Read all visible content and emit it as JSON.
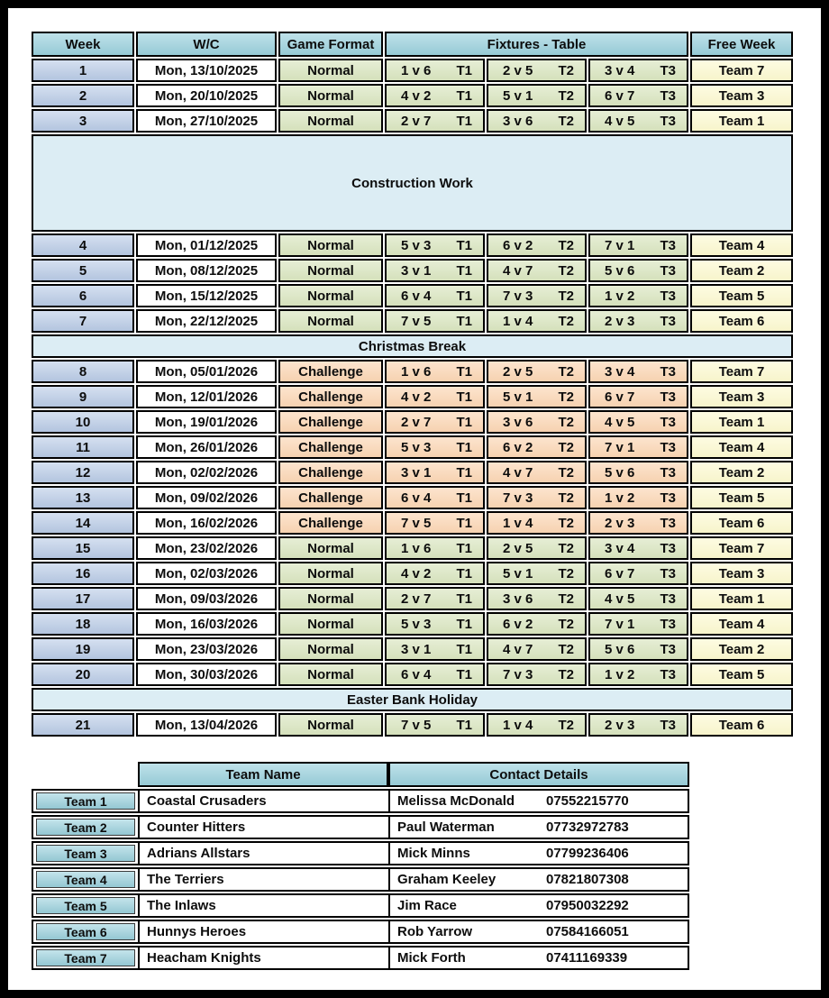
{
  "colors": {
    "header": "#9CD2DE",
    "week": "#B9CBE6",
    "normal": "#D9E5BF",
    "challenge": "#FBD6B4",
    "free": "#FCF9CF",
    "band": "#DCEDF4",
    "border": "#000000"
  },
  "fixtures": {
    "headers": {
      "week": "Week",
      "wc": "W/C",
      "format": "Game Format",
      "fixtures": "Fixtures - Table",
      "free": "Free Week"
    },
    "rows": [
      {
        "type": "week",
        "week": "1",
        "wc": "Mon, 13/10/2025",
        "format": "Normal",
        "fixtures": [
          {
            "match": "1 v 6",
            "table": "T1"
          },
          {
            "match": "2 v 5",
            "table": "T2"
          },
          {
            "match": "3 v 4",
            "table": "T3"
          }
        ],
        "free": "Team 7"
      },
      {
        "type": "week",
        "week": "2",
        "wc": "Mon, 20/10/2025",
        "format": "Normal",
        "fixtures": [
          {
            "match": "4 v 2",
            "table": "T1"
          },
          {
            "match": "5 v 1",
            "table": "T2"
          },
          {
            "match": "6 v 7",
            "table": "T3"
          }
        ],
        "free": "Team 3"
      },
      {
        "type": "week",
        "week": "3",
        "wc": "Mon, 27/10/2025",
        "format": "Normal",
        "fixtures": [
          {
            "match": "2 v 7",
            "table": "T1"
          },
          {
            "match": "3 v 6",
            "table": "T2"
          },
          {
            "match": "4 v 5",
            "table": "T3"
          }
        ],
        "free": "Team 1"
      },
      {
        "type": "band",
        "label": "Construction Work",
        "variant": "tall"
      },
      {
        "type": "week",
        "week": "4",
        "wc": "Mon, 01/12/2025",
        "format": "Normal",
        "fixtures": [
          {
            "match": "5 v 3",
            "table": "T1"
          },
          {
            "match": "6 v 2",
            "table": "T2"
          },
          {
            "match": "7 v 1",
            "table": "T3"
          }
        ],
        "free": "Team 4"
      },
      {
        "type": "week",
        "week": "5",
        "wc": "Mon, 08/12/2025",
        "format": "Normal",
        "fixtures": [
          {
            "match": "3 v 1",
            "table": "T1"
          },
          {
            "match": "4 v 7",
            "table": "T2"
          },
          {
            "match": "5 v 6",
            "table": "T3"
          }
        ],
        "free": "Team 2"
      },
      {
        "type": "week",
        "week": "6",
        "wc": "Mon, 15/12/2025",
        "format": "Normal",
        "fixtures": [
          {
            "match": "6 v 4",
            "table": "T1"
          },
          {
            "match": "7 v 3",
            "table": "T2"
          },
          {
            "match": "1 v 2",
            "table": "T3"
          }
        ],
        "free": "Team 5"
      },
      {
        "type": "week",
        "week": "7",
        "wc": "Mon, 22/12/2025",
        "format": "Normal",
        "fixtures": [
          {
            "match": "7 v 5",
            "table": "T1"
          },
          {
            "match": "1 v 4",
            "table": "T2"
          },
          {
            "match": "2 v 3",
            "table": "T3"
          }
        ],
        "free": "Team 6"
      },
      {
        "type": "band",
        "label": "Christmas Break",
        "variant": "slim"
      },
      {
        "type": "week",
        "week": "8",
        "wc": "Mon, 05/01/2026",
        "format": "Challenge",
        "fixtures": [
          {
            "match": "1 v 6",
            "table": "T1"
          },
          {
            "match": "2 v 5",
            "table": "T2"
          },
          {
            "match": "3 v 4",
            "table": "T3"
          }
        ],
        "free": "Team 7"
      },
      {
        "type": "week",
        "week": "9",
        "wc": "Mon, 12/01/2026",
        "format": "Challenge",
        "fixtures": [
          {
            "match": "4 v 2",
            "table": "T1"
          },
          {
            "match": "5 v 1",
            "table": "T2"
          },
          {
            "match": "6 v 7",
            "table": "T3"
          }
        ],
        "free": "Team 3"
      },
      {
        "type": "week",
        "week": "10",
        "wc": "Mon, 19/01/2026",
        "format": "Challenge",
        "fixtures": [
          {
            "match": "2 v 7",
            "table": "T1"
          },
          {
            "match": "3 v 6",
            "table": "T2"
          },
          {
            "match": "4 v 5",
            "table": "T3"
          }
        ],
        "free": "Team 1"
      },
      {
        "type": "week",
        "week": "11",
        "wc": "Mon, 26/01/2026",
        "format": "Challenge",
        "fixtures": [
          {
            "match": "5 v 3",
            "table": "T1"
          },
          {
            "match": "6 v 2",
            "table": "T2"
          },
          {
            "match": "7 v 1",
            "table": "T3"
          }
        ],
        "free": "Team 4"
      },
      {
        "type": "week",
        "week": "12",
        "wc": "Mon, 02/02/2026",
        "format": "Challenge",
        "fixtures": [
          {
            "match": "3 v 1",
            "table": "T1"
          },
          {
            "match": "4 v 7",
            "table": "T2"
          },
          {
            "match": "5 v 6",
            "table": "T3"
          }
        ],
        "free": "Team 2"
      },
      {
        "type": "week",
        "week": "13",
        "wc": "Mon, 09/02/2026",
        "format": "Challenge",
        "fixtures": [
          {
            "match": "6 v 4",
            "table": "T1"
          },
          {
            "match": "7 v 3",
            "table": "T2"
          },
          {
            "match": "1 v 2",
            "table": "T3"
          }
        ],
        "free": "Team 5"
      },
      {
        "type": "week",
        "week": "14",
        "wc": "Mon, 16/02/2026",
        "format": "Challenge",
        "fixtures": [
          {
            "match": "7 v 5",
            "table": "T1"
          },
          {
            "match": "1 v 4",
            "table": "T2"
          },
          {
            "match": "2 v 3",
            "table": "T3"
          }
        ],
        "free": "Team 6"
      },
      {
        "type": "week",
        "week": "15",
        "wc": "Mon, 23/02/2026",
        "format": "Normal",
        "fixtures": [
          {
            "match": "1 v 6",
            "table": "T1"
          },
          {
            "match": "2 v 5",
            "table": "T2"
          },
          {
            "match": "3 v 4",
            "table": "T3"
          }
        ],
        "free": "Team 7"
      },
      {
        "type": "week",
        "week": "16",
        "wc": "Mon, 02/03/2026",
        "format": "Normal",
        "fixtures": [
          {
            "match": "4 v 2",
            "table": "T1"
          },
          {
            "match": "5 v 1",
            "table": "T2"
          },
          {
            "match": "6 v 7",
            "table": "T3"
          }
        ],
        "free": "Team 3"
      },
      {
        "type": "week",
        "week": "17",
        "wc": "Mon, 09/03/2026",
        "format": "Normal",
        "fixtures": [
          {
            "match": "2 v 7",
            "table": "T1"
          },
          {
            "match": "3 v 6",
            "table": "T2"
          },
          {
            "match": "4 v 5",
            "table": "T3"
          }
        ],
        "free": "Team 1"
      },
      {
        "type": "week",
        "week": "18",
        "wc": "Mon, 16/03/2026",
        "format": "Normal",
        "fixtures": [
          {
            "match": "5 v 3",
            "table": "T1"
          },
          {
            "match": "6 v 2",
            "table": "T2"
          },
          {
            "match": "7 v 1",
            "table": "T3"
          }
        ],
        "free": "Team 4"
      },
      {
        "type": "week",
        "week": "19",
        "wc": "Mon, 23/03/2026",
        "format": "Normal",
        "fixtures": [
          {
            "match": "3 v 1",
            "table": "T1"
          },
          {
            "match": "4 v 7",
            "table": "T2"
          },
          {
            "match": "5 v 6",
            "table": "T3"
          }
        ],
        "free": "Team 2"
      },
      {
        "type": "week",
        "week": "20",
        "wc": "Mon, 30/03/2026",
        "format": "Normal",
        "fixtures": [
          {
            "match": "6 v 4",
            "table": "T1"
          },
          {
            "match": "7 v 3",
            "table": "T2"
          },
          {
            "match": "1 v 2",
            "table": "T3"
          }
        ],
        "free": "Team 5"
      },
      {
        "type": "band",
        "label": "Easter Bank Holiday",
        "variant": "slim"
      },
      {
        "type": "week",
        "week": "21",
        "wc": "Mon, 13/04/2026",
        "format": "Normal",
        "fixtures": [
          {
            "match": "7 v 5",
            "table": "T1"
          },
          {
            "match": "1 v 4",
            "table": "T2"
          },
          {
            "match": "2 v 3",
            "table": "T3"
          }
        ],
        "free": "Team 6"
      }
    ]
  },
  "teams": {
    "headers": {
      "name": "Team Name",
      "contact": "Contact Details"
    },
    "rows": [
      {
        "team": "Team 1",
        "name": "Coastal Crusaders",
        "contact": "Melissa McDonald",
        "phone": "07552215770"
      },
      {
        "team": "Team 2",
        "name": "Counter Hitters",
        "contact": "Paul Waterman",
        "phone": "07732972783"
      },
      {
        "team": "Team 3",
        "name": "Adrians Allstars",
        "contact": "Mick Minns",
        "phone": "07799236406"
      },
      {
        "team": "Team 4",
        "name": "The Terriers",
        "contact": "Graham Keeley",
        "phone": "07821807308"
      },
      {
        "team": "Team 5",
        "name": "The Inlaws",
        "contact": "Jim Race",
        "phone": "07950032292"
      },
      {
        "team": "Team 6",
        "name": "Hunnys Heroes",
        "contact": "Rob Yarrow",
        "phone": "07584166051"
      },
      {
        "team": "Team 7",
        "name": "Heacham Knights",
        "contact": "Mick Forth",
        "phone": "07411169339"
      }
    ]
  }
}
